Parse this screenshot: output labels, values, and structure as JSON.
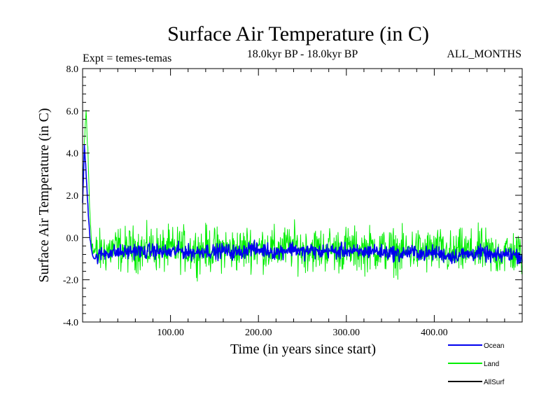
{
  "chart_data": {
    "type": "line",
    "title": "Surface Air Temperature (in C)",
    "subtitle": "18.0kyr BP - 18.0kyr BP",
    "left_label": "Expt = temes-temas",
    "right_label": "ALL_MONTHS",
    "xlabel": "Time (in years since start)",
    "ylabel": "Surface Air Temperature (in C)",
    "xlim": [
      0,
      500
    ],
    "ylim": [
      -4.0,
      8.0
    ],
    "x_ticks": [
      100,
      200,
      300,
      400
    ],
    "x_tick_labels": [
      "100.00",
      "200.00",
      "300.00",
      "400.00"
    ],
    "y_ticks": [
      -4.0,
      -2.0,
      0.0,
      2.0,
      4.0,
      6.0,
      8.0
    ],
    "y_tick_labels": [
      "-4.0",
      "-2.0",
      "0.0",
      "2.0",
      "4.0",
      "6.0",
      "8.0"
    ],
    "legend_position": "bottom-right, outside plot",
    "series": [
      {
        "name": "Land",
        "color": "#00ee00",
        "x": [
          0,
          2,
          4,
          6,
          8,
          10,
          12,
          15,
          20,
          30,
          40,
          50,
          60,
          70,
          80,
          90,
          100,
          110,
          120,
          130,
          140,
          150,
          160,
          170,
          180,
          190,
          200,
          210,
          220,
          230,
          240,
          250,
          260,
          270,
          280,
          290,
          300,
          310,
          320,
          330,
          340,
          350,
          360,
          370,
          380,
          390,
          400,
          410,
          420,
          430,
          440,
          450,
          460,
          470,
          480,
          490,
          500
        ],
        "values": [
          2.0,
          4.5,
          6.0,
          4.0,
          1.5,
          0.0,
          -0.6,
          -0.8,
          -0.7,
          -0.6,
          -0.5,
          -0.6,
          -0.5,
          -0.6,
          -0.5,
          -0.6,
          -0.6,
          -0.5,
          -0.6,
          -0.6,
          -0.5,
          -0.6,
          -0.5,
          -0.6,
          -0.6,
          -0.4,
          -0.5,
          -0.5,
          -0.6,
          -0.5,
          -0.4,
          -0.6,
          -0.5,
          -0.6,
          -0.5,
          -0.6,
          -0.5,
          -0.6,
          -0.6,
          -0.5,
          -0.6,
          -0.6,
          -0.7,
          -0.6,
          -0.6,
          -0.7,
          -0.6,
          -0.7,
          -0.8,
          -0.7,
          -0.7,
          -0.6,
          -0.7,
          -0.8,
          -0.7,
          -0.7,
          -0.8
        ],
        "noise_amplitude": 0.9
      },
      {
        "name": "Ocean",
        "color": "#0000ee",
        "x": [
          0,
          2,
          4,
          6,
          8,
          10,
          12,
          15,
          20,
          30,
          40,
          50,
          60,
          70,
          80,
          90,
          100,
          110,
          120,
          130,
          140,
          150,
          160,
          170,
          180,
          190,
          200,
          210,
          220,
          230,
          240,
          250,
          260,
          270,
          280,
          290,
          300,
          310,
          320,
          330,
          340,
          350,
          360,
          370,
          380,
          390,
          400,
          410,
          420,
          430,
          440,
          450,
          460,
          470,
          480,
          490,
          500
        ],
        "values": [
          1.5,
          4.4,
          3.0,
          1.5,
          0.2,
          -0.5,
          -0.9,
          -1.0,
          -0.8,
          -0.7,
          -0.7,
          -0.7,
          -0.6,
          -0.7,
          -0.6,
          -0.7,
          -0.7,
          -0.6,
          -0.7,
          -0.7,
          -0.6,
          -0.7,
          -0.6,
          -0.7,
          -0.7,
          -0.5,
          -0.6,
          -0.6,
          -0.7,
          -0.6,
          -0.5,
          -0.7,
          -0.6,
          -0.7,
          -0.6,
          -0.7,
          -0.6,
          -0.7,
          -0.7,
          -0.6,
          -0.7,
          -0.7,
          -0.8,
          -0.7,
          -0.7,
          -0.8,
          -0.7,
          -0.8,
          -0.9,
          -0.8,
          -0.8,
          -0.7,
          -0.8,
          -0.9,
          -0.8,
          -0.8,
          -0.9
        ],
        "noise_amplitude": 0.3
      },
      {
        "name": "AllSurf",
        "color": "#000000",
        "x": [],
        "values": []
      }
    ],
    "legend": [
      {
        "name": "Ocean",
        "color": "#0000ee"
      },
      {
        "name": "Land",
        "color": "#00ee00"
      },
      {
        "name": "AllSurf",
        "color": "#000000"
      }
    ]
  }
}
